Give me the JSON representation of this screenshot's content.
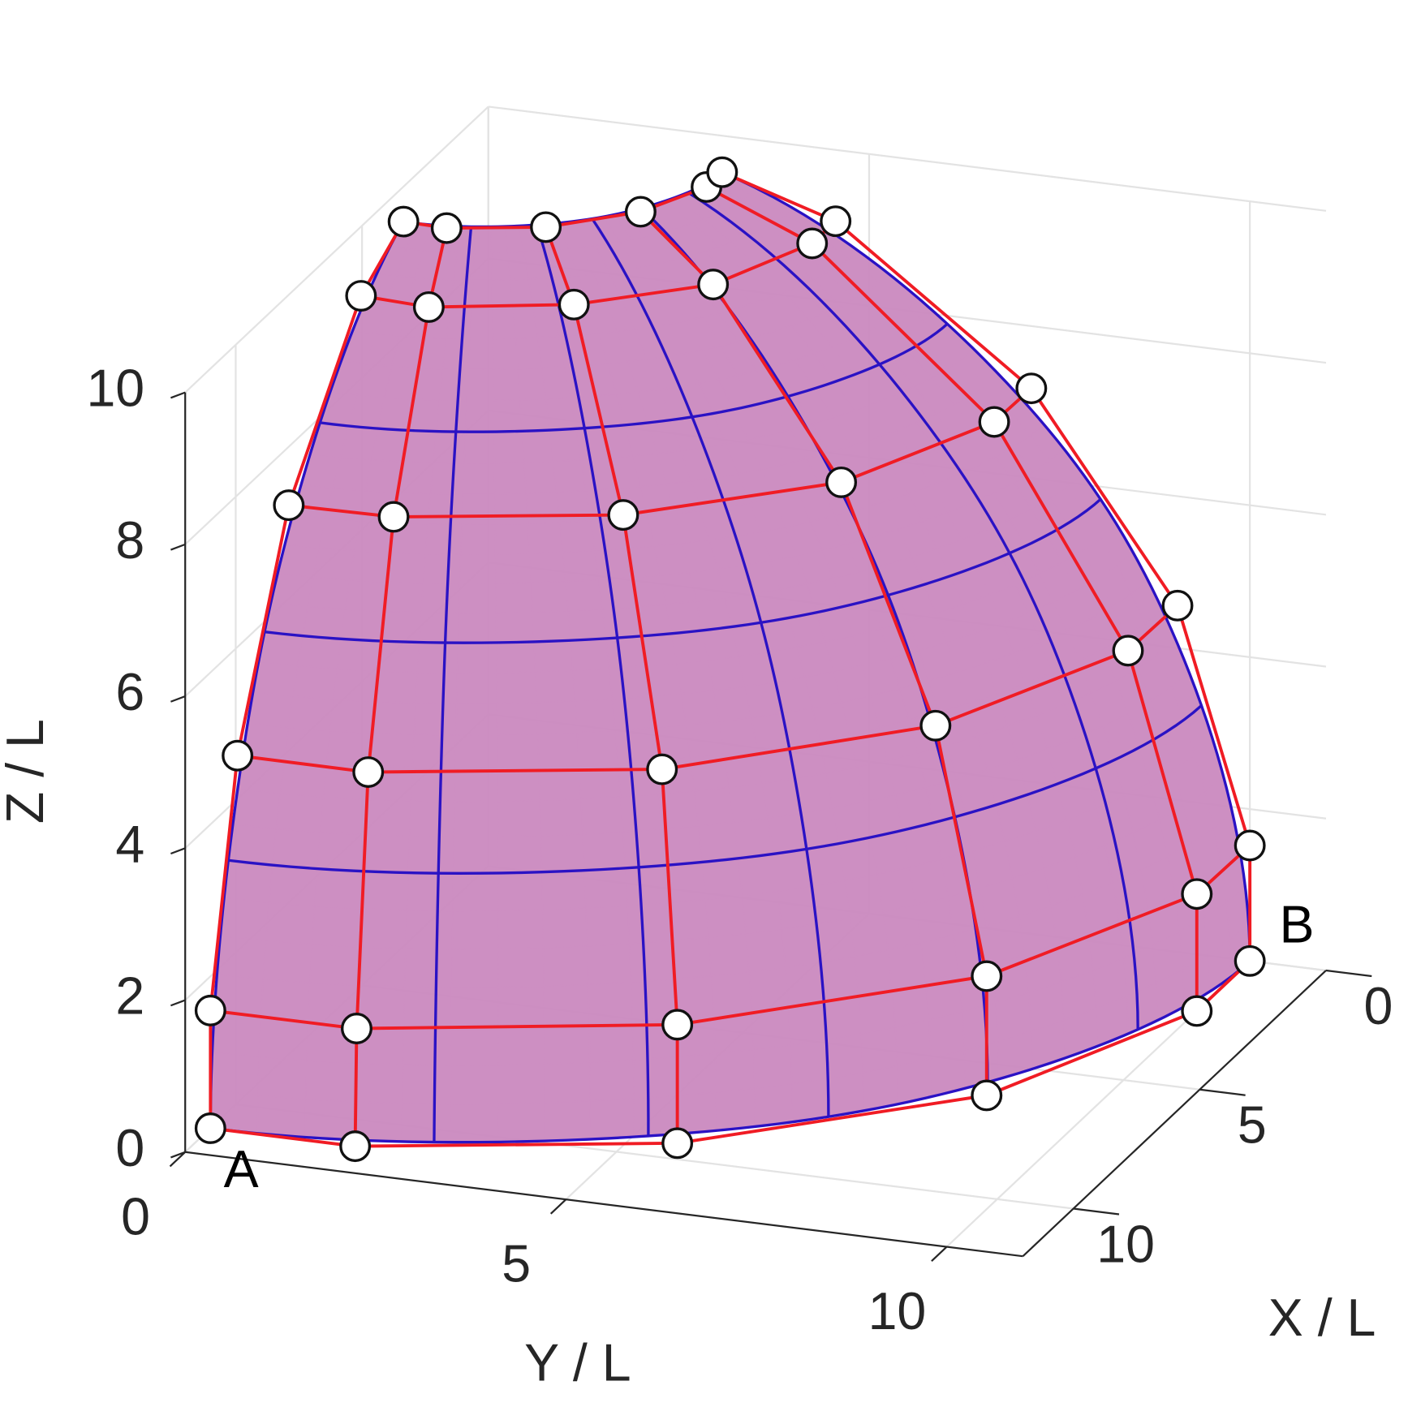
{
  "chart_data": {
    "type": "surface3d",
    "x_label": "X / L",
    "y_label": "Y / L",
    "z_label": "Z / L",
    "xlim": [
      0,
      12
    ],
    "ylim": [
      0,
      11
    ],
    "zlim": [
      0,
      10
    ],
    "xticks": [
      0,
      5,
      10
    ],
    "yticks": [
      0,
      5,
      10
    ],
    "zticks": [
      0,
      2,
      4,
      6,
      8,
      10
    ],
    "grid": true,
    "annotations": [
      {
        "text": "A"
      },
      {
        "text": "B"
      }
    ],
    "surface_color": "#cc8bc0",
    "isoline_color": "#2a12c4",
    "net_color": "#f01c24",
    "control_net": {
      "x": [
        [
          11,
          11,
          9.4,
          6.2,
          2.1,
          0
        ],
        [
          11,
          10.88,
          9.4,
          6.2,
          2.1,
          0
        ],
        [
          9.93,
          9.91,
          8.62,
          5.57,
          1.9,
          0
        ],
        [
          7.9,
          7.82,
          6.69,
          4.39,
          1.5,
          0
        ],
        [
          5.04,
          4.92,
          4.27,
          2.8,
          0.96,
          0
        ],
        [
          3.36,
          3.43,
          2.88,
          1.9,
          0.65,
          0
        ]
      ],
      "y": [
        [
          0,
          1.9,
          5.6,
          8.6,
          10,
          10
        ],
        [
          0,
          1.88,
          5.6,
          8.6,
          10,
          10
        ],
        [
          0,
          1.71,
          5.14,
          7.72,
          9.03,
          9.05
        ],
        [
          0,
          1.35,
          3.99,
          6.09,
          7.14,
          7.13
        ],
        [
          0,
          0.85,
          2.54,
          3.88,
          4.57,
          4.56
        ],
        [
          0,
          0.59,
          1.71,
          2.63,
          3.08,
          3.07
        ]
      ],
      "z": [
        [
          0,
          0,
          0,
          0,
          0,
          0
        ],
        [
          1.55,
          1.51,
          1.56,
          1.57,
          1.54,
          1.52
        ],
        [
          4.57,
          4.56,
          4.62,
          4.56,
          4.56,
          4.56
        ],
        [
          7.23,
          7.22,
          7.22,
          7.19,
          7.21,
          7.18
        ],
        [
          9.09,
          9.01,
          9.05,
          9.02,
          9.07,
          9.06
        ],
        [
          9.54,
          9.55,
          9.53,
          9.54,
          9.53,
          9.52
        ]
      ]
    }
  }
}
